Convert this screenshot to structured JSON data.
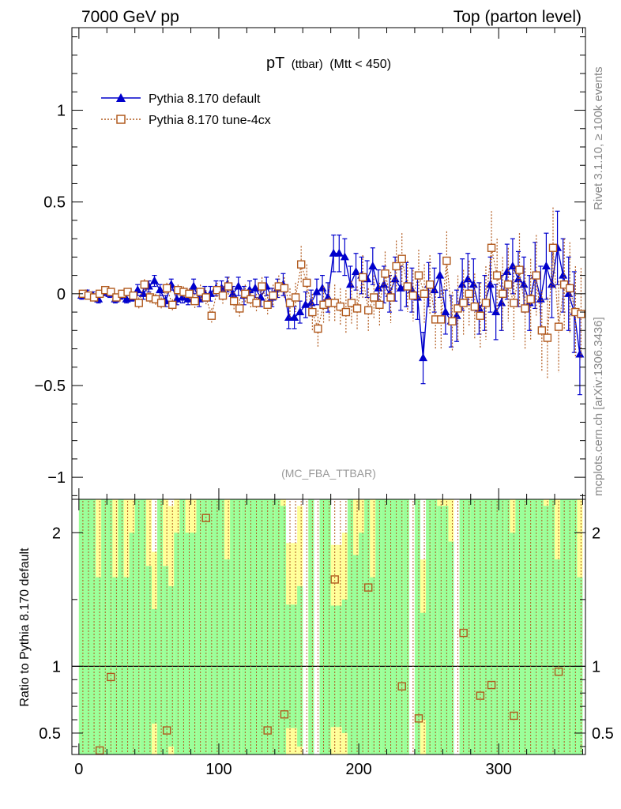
{
  "header": {
    "left": "7000 GeV pp",
    "right": "Top (parton level)"
  },
  "side_labels": {
    "rivet": "Rivet 3.1.10, ≥ 100k events",
    "mcplots": "mcplots.cern.ch [arXiv:1306.3436]"
  },
  "chart_data": {
    "type": "line",
    "title_main": "pT",
    "title_sub": "(ttbar)",
    "title_cut": "(Mtt < 450)",
    "watermark": "(MC_FBA_TTBAR)",
    "xlim": [
      -5,
      362
    ],
    "ylim": [
      -1.12,
      1.45
    ],
    "yticks": [
      1,
      0.5,
      0,
      -0.5,
      -1
    ],
    "ytick_labels": [
      "1",
      "0.5",
      "0",
      "−0.5",
      "−1"
    ],
    "xticks": [
      0,
      100,
      200,
      300
    ],
    "xtick_labels": [
      "0",
      "100",
      "200",
      "300"
    ],
    "legend_position": "top-left",
    "series": [
      {
        "name": "Pythia 8.170 default",
        "color": "#0000cc",
        "marker": "triangle",
        "x": [
          2,
          6,
          10,
          14,
          18,
          22,
          26,
          30,
          34,
          38,
          42,
          46,
          50,
          54,
          58,
          62,
          66,
          70,
          74,
          78,
          82,
          86,
          90,
          94,
          98,
          102,
          106,
          110,
          114,
          118,
          122,
          126,
          130,
          134,
          138,
          142,
          146,
          150,
          154,
          158,
          162,
          166,
          170,
          174,
          178,
          182,
          186,
          190,
          194,
          198,
          202,
          206,
          210,
          214,
          218,
          222,
          226,
          230,
          234,
          238,
          242,
          246,
          250,
          254,
          258,
          262,
          266,
          270,
          274,
          278,
          282,
          286,
          290,
          294,
          298,
          302,
          306,
          310,
          314,
          318,
          322,
          326,
          330,
          334,
          338,
          342,
          346,
          350,
          354,
          358
        ],
        "values": [
          -0.01,
          0.0,
          -0.01,
          -0.03,
          0.01,
          0.0,
          -0.03,
          -0.01,
          -0.03,
          -0.02,
          0.02,
          0.0,
          0.04,
          0.07,
          0.02,
          -0.04,
          0.05,
          -0.03,
          -0.02,
          -0.03,
          0.04,
          -0.03,
          0.0,
          0.0,
          0.03,
          0.03,
          0.05,
          0.0,
          0.04,
          -0.01,
          0.02,
          0.03,
          -0.02,
          0.04,
          -0.02,
          0.03,
          0.05,
          -0.13,
          -0.13,
          -0.1,
          -0.06,
          -0.05,
          0.01,
          0.03,
          -0.02,
          0.22,
          0.22,
          0.2,
          0.05,
          0.12,
          0.1,
          0.08,
          0.15,
          0.03,
          0.05,
          0.0,
          0.08,
          0.03,
          0.05,
          0.02,
          -0.02,
          -0.35,
          0.05,
          0.02,
          0.1,
          -0.1,
          -0.15,
          -0.12,
          0.05,
          0.08,
          0.05,
          -0.08,
          -0.05,
          0.05,
          -0.1,
          -0.05,
          0.12,
          0.15,
          0.08,
          0.05,
          -0.05,
          0.1,
          -0.03,
          0.15,
          0.05,
          0.25,
          0.1,
          0.0,
          -0.1,
          -0.33
        ],
        "errors": [
          0.02,
          0.02,
          0.02,
          0.02,
          0.02,
          0.02,
          0.02,
          0.02,
          0.02,
          0.02,
          0.03,
          0.03,
          0.03,
          0.03,
          0.03,
          0.03,
          0.03,
          0.03,
          0.03,
          0.03,
          0.04,
          0.04,
          0.04,
          0.04,
          0.04,
          0.04,
          0.04,
          0.04,
          0.05,
          0.05,
          0.05,
          0.05,
          0.05,
          0.05,
          0.05,
          0.05,
          0.06,
          0.06,
          0.06,
          0.06,
          0.07,
          0.07,
          0.07,
          0.07,
          0.08,
          0.1,
          0.1,
          0.1,
          0.1,
          0.1,
          0.1,
          0.1,
          0.1,
          0.1,
          0.1,
          0.1,
          0.12,
          0.12,
          0.12,
          0.12,
          0.12,
          0.14,
          0.12,
          0.12,
          0.12,
          0.12,
          0.14,
          0.14,
          0.14,
          0.14,
          0.14,
          0.14,
          0.15,
          0.15,
          0.15,
          0.15,
          0.15,
          0.15,
          0.15,
          0.15,
          0.15,
          0.18,
          0.18,
          0.18,
          0.18,
          0.2,
          0.2,
          0.2,
          0.22,
          0.22
        ]
      },
      {
        "name": "Pythia 8.170 tune-4cx",
        "color": "#b15a1e",
        "marker": "open-square",
        "x": [
          2,
          6,
          10,
          14,
          18,
          22,
          26,
          30,
          34,
          38,
          42,
          46,
          50,
          54,
          58,
          62,
          66,
          70,
          74,
          78,
          82,
          86,
          90,
          94,
          98,
          102,
          106,
          110,
          114,
          118,
          122,
          126,
          130,
          134,
          138,
          142,
          146,
          150,
          154,
          158,
          162,
          166,
          170,
          174,
          178,
          182,
          186,
          190,
          194,
          198,
          202,
          206,
          210,
          214,
          218,
          222,
          226,
          230,
          234,
          238,
          242,
          246,
          250,
          254,
          258,
          262,
          266,
          270,
          274,
          278,
          282,
          286,
          290,
          294,
          298,
          302,
          306,
          310,
          314,
          318,
          322,
          326,
          330,
          334,
          338,
          342,
          346,
          350,
          354,
          358
        ],
        "values": [
          0.0,
          -0.01,
          -0.02,
          0.0,
          0.02,
          0.01,
          -0.02,
          0.0,
          0.01,
          -0.01,
          -0.05,
          0.05,
          -0.02,
          -0.03,
          -0.05,
          0.03,
          -0.06,
          0.02,
          0.01,
          0.0,
          -0.04,
          0.01,
          -0.02,
          -0.12,
          0.02,
          -0.01,
          0.04,
          -0.04,
          -0.08,
          0.0,
          -0.03,
          -0.05,
          0.04,
          -0.06,
          -0.01,
          0.04,
          0.03,
          -0.05,
          -0.02,
          0.16,
          0.06,
          -0.1,
          -0.19,
          -0.06,
          -0.05,
          -0.05,
          -0.07,
          -0.1,
          -0.05,
          -0.08,
          0.09,
          -0.09,
          -0.02,
          -0.06,
          0.11,
          -0.02,
          0.15,
          0.19,
          0.04,
          -0.01,
          0.1,
          0.0,
          0.05,
          -0.14,
          -0.14,
          0.18,
          -0.15,
          -0.08,
          -0.05,
          0.0,
          -0.07,
          -0.12,
          -0.05,
          0.25,
          0.1,
          0.0,
          0.05,
          -0.05,
          0.13,
          -0.08,
          -0.03,
          0.1,
          -0.2,
          -0.24,
          0.25,
          -0.18,
          0.05,
          0.03,
          -0.1,
          -0.11
        ],
        "errors": [
          0.02,
          0.02,
          0.02,
          0.02,
          0.02,
          0.02,
          0.02,
          0.02,
          0.02,
          0.02,
          0.03,
          0.03,
          0.03,
          0.03,
          0.03,
          0.03,
          0.03,
          0.03,
          0.03,
          0.03,
          0.04,
          0.04,
          0.04,
          0.04,
          0.04,
          0.05,
          0.05,
          0.05,
          0.05,
          0.05,
          0.05,
          0.05,
          0.05,
          0.06,
          0.06,
          0.06,
          0.06,
          0.08,
          0.08,
          0.1,
          0.1,
          0.1,
          0.1,
          0.1,
          0.1,
          0.1,
          0.1,
          0.12,
          0.12,
          0.12,
          0.12,
          0.12,
          0.12,
          0.12,
          0.12,
          0.14,
          0.14,
          0.14,
          0.14,
          0.14,
          0.14,
          0.16,
          0.16,
          0.16,
          0.16,
          0.16,
          0.16,
          0.18,
          0.18,
          0.18,
          0.18,
          0.18,
          0.2,
          0.2,
          0.2,
          0.2,
          0.2,
          0.2,
          0.2,
          0.22,
          0.22,
          0.22,
          0.22,
          0.22,
          0.22,
          0.25,
          0.25,
          0.25,
          0.25,
          0.25
        ]
      }
    ],
    "ratio": {
      "ylabel": "Ratio to Pythia 8.170 default",
      "ylim": [
        0.34,
        2.25
      ],
      "yticks": [
        2,
        1,
        0.5
      ],
      "ytick_labels": [
        "2",
        "1",
        "0.5"
      ],
      "reference_line": 1,
      "band_colors": {
        "inner": "#9aff9a",
        "outer": "#ffff99"
      },
      "points": [
        {
          "x": 14,
          "value": 0.37
        },
        {
          "x": 22,
          "value": 0.92
        },
        {
          "x": 62,
          "value": 0.52
        },
        {
          "x": 90,
          "value": 2.11
        },
        {
          "x": 134,
          "value": 0.52
        },
        {
          "x": 146,
          "value": 0.64
        },
        {
          "x": 182,
          "value": 1.65
        },
        {
          "x": 206,
          "value": 1.59
        },
        {
          "x": 230,
          "value": 0.85
        },
        {
          "x": 242,
          "value": 0.61
        },
        {
          "x": 274,
          "value": 1.25
        },
        {
          "x": 286,
          "value": 0.78
        },
        {
          "x": 294,
          "value": 0.86
        },
        {
          "x": 310,
          "value": 0.63
        },
        {
          "x": 342,
          "value": 0.96
        }
      ]
    }
  }
}
